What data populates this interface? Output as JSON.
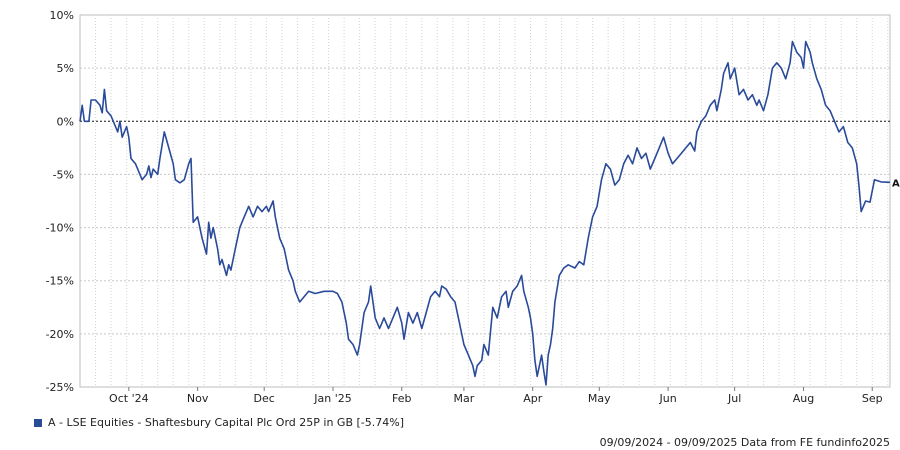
{
  "chart_data": {
    "type": "line",
    "title": "",
    "xlabel": "",
    "ylabel": "",
    "ylim": [
      -25,
      10
    ],
    "y_ticks": [
      10,
      5,
      0,
      -5,
      -10,
      -15,
      -20,
      -25
    ],
    "y_tick_labels": [
      "10%",
      "5%",
      "0%",
      "-5%",
      "-10%",
      "-15%",
      "-20%",
      "-25%"
    ],
    "x_range": [
      "2024-09-09",
      "2025-09-09"
    ],
    "x_ticks": [
      {
        "date": "2024-10-01",
        "label": "Oct '24"
      },
      {
        "date": "2024-11-01",
        "label": "Nov"
      },
      {
        "date": "2024-12-01",
        "label": "Dec"
      },
      {
        "date": "2025-01-01",
        "label": "Jan '25"
      },
      {
        "date": "2025-02-01",
        "label": "Feb"
      },
      {
        "date": "2025-03-01",
        "label": "Mar"
      },
      {
        "date": "2025-04-01",
        "label": "Apr"
      },
      {
        "date": "2025-05-01",
        "label": "May"
      },
      {
        "date": "2025-06-01",
        "label": "Jun"
      },
      {
        "date": "2025-07-01",
        "label": "Jul"
      },
      {
        "date": "2025-08-01",
        "label": "Aug"
      },
      {
        "date": "2025-09-01",
        "label": "Sep"
      }
    ],
    "grid": true,
    "reference_line": 0,
    "legend_position": "bottom-left",
    "series": [
      {
        "name": "A - LSE Equities - Shaftesbury Capital Plc Ord 25P in GB [-5.74%]",
        "end_label": "A",
        "color": "#2a4a9a",
        "points": [
          [
            "2024-09-09",
            0
          ],
          [
            "2024-09-10",
            1.5
          ],
          [
            "2024-09-11",
            0
          ],
          [
            "2024-09-13",
            0
          ],
          [
            "2024-09-14",
            2
          ],
          [
            "2024-09-16",
            2
          ],
          [
            "2024-09-18",
            1.5
          ],
          [
            "2024-09-19",
            0.8
          ],
          [
            "2024-09-20",
            3
          ],
          [
            "2024-09-21",
            1
          ],
          [
            "2024-09-23",
            0.5
          ],
          [
            "2024-09-24",
            0
          ],
          [
            "2024-09-26",
            -1
          ],
          [
            "2024-09-27",
            0
          ],
          [
            "2024-09-28",
            -1.5
          ],
          [
            "2024-09-30",
            -0.5
          ],
          [
            "2024-10-01",
            -1.5
          ],
          [
            "2024-10-02",
            -3.5
          ],
          [
            "2024-10-04",
            -4
          ],
          [
            "2024-10-05",
            -4.5
          ],
          [
            "2024-10-07",
            -5.5
          ],
          [
            "2024-10-09",
            -5
          ],
          [
            "2024-10-10",
            -4.2
          ],
          [
            "2024-10-11",
            -5.3
          ],
          [
            "2024-10-12",
            -4.5
          ],
          [
            "2024-10-14",
            -5
          ],
          [
            "2024-10-15",
            -3.5
          ],
          [
            "2024-10-17",
            -1
          ],
          [
            "2024-10-19",
            -2.5
          ],
          [
            "2024-10-21",
            -4
          ],
          [
            "2024-10-22",
            -5.5
          ],
          [
            "2024-10-24",
            -5.8
          ],
          [
            "2024-10-26",
            -5.5
          ],
          [
            "2024-10-28",
            -4
          ],
          [
            "2024-10-29",
            -3.5
          ],
          [
            "2024-10-30",
            -9.5
          ],
          [
            "2024-11-01",
            -9
          ],
          [
            "2024-11-03",
            -11
          ],
          [
            "2024-11-05",
            -12.5
          ],
          [
            "2024-11-06",
            -9.5
          ],
          [
            "2024-11-07",
            -11
          ],
          [
            "2024-11-08",
            -10
          ],
          [
            "2024-11-10",
            -12
          ],
          [
            "2024-11-11",
            -13.5
          ],
          [
            "2024-11-12",
            -13
          ],
          [
            "2024-11-14",
            -14.5
          ],
          [
            "2024-11-15",
            -13.5
          ],
          [
            "2024-11-16",
            -14
          ],
          [
            "2024-11-18",
            -12
          ],
          [
            "2024-11-20",
            -10
          ],
          [
            "2024-11-22",
            -9
          ],
          [
            "2024-11-24",
            -8
          ],
          [
            "2024-11-26",
            -9
          ],
          [
            "2024-11-28",
            -8
          ],
          [
            "2024-11-30",
            -8.5
          ],
          [
            "2024-12-02",
            -8
          ],
          [
            "2024-12-03",
            -8.5
          ],
          [
            "2024-12-05",
            -7.5
          ],
          [
            "2024-12-06",
            -9
          ],
          [
            "2024-12-08",
            -11
          ],
          [
            "2024-12-10",
            -12
          ],
          [
            "2024-12-12",
            -14
          ],
          [
            "2024-12-14",
            -15
          ],
          [
            "2024-12-15",
            -16
          ],
          [
            "2024-12-17",
            -17
          ],
          [
            "2024-12-19",
            -16.5
          ],
          [
            "2024-12-21",
            -16
          ],
          [
            "2024-12-24",
            -16.2
          ],
          [
            "2024-12-28",
            -16
          ],
          [
            "2025-01-01",
            -16
          ],
          [
            "2025-01-03",
            -16.2
          ],
          [
            "2025-01-05",
            -17
          ],
          [
            "2025-01-07",
            -19
          ],
          [
            "2025-01-08",
            -20.5
          ],
          [
            "2025-01-10",
            -21
          ],
          [
            "2025-01-12",
            -22
          ],
          [
            "2025-01-13",
            -21
          ],
          [
            "2025-01-15",
            -18
          ],
          [
            "2025-01-17",
            -17
          ],
          [
            "2025-01-18",
            -15.5
          ],
          [
            "2025-01-20",
            -18.5
          ],
          [
            "2025-01-22",
            -19.5
          ],
          [
            "2025-01-24",
            -18.5
          ],
          [
            "2025-01-26",
            -19.5
          ],
          [
            "2025-01-28",
            -18.5
          ],
          [
            "2025-01-30",
            -17.5
          ],
          [
            "2025-02-01",
            -19
          ],
          [
            "2025-02-02",
            -20.5
          ],
          [
            "2025-02-04",
            -18
          ],
          [
            "2025-02-06",
            -19
          ],
          [
            "2025-02-08",
            -18
          ],
          [
            "2025-02-10",
            -19.5
          ],
          [
            "2025-02-12",
            -18
          ],
          [
            "2025-02-14",
            -16.5
          ],
          [
            "2025-02-16",
            -16
          ],
          [
            "2025-02-18",
            -16.5
          ],
          [
            "2025-02-19",
            -15.5
          ],
          [
            "2025-02-21",
            -15.8
          ],
          [
            "2025-02-23",
            -16.5
          ],
          [
            "2025-02-25",
            -17
          ],
          [
            "2025-02-27",
            -19
          ],
          [
            "2025-03-01",
            -21
          ],
          [
            "2025-03-03",
            -22
          ],
          [
            "2025-03-05",
            -23
          ],
          [
            "2025-03-06",
            -24
          ],
          [
            "2025-03-07",
            -23
          ],
          [
            "2025-03-09",
            -22.5
          ],
          [
            "2025-03-10",
            -21
          ],
          [
            "2025-03-12",
            -22
          ],
          [
            "2025-03-14",
            -17.5
          ],
          [
            "2025-03-16",
            -18.5
          ],
          [
            "2025-03-18",
            -16.5
          ],
          [
            "2025-03-20",
            -16
          ],
          [
            "2025-03-21",
            -17.5
          ],
          [
            "2025-03-23",
            -16
          ],
          [
            "2025-03-25",
            -15.5
          ],
          [
            "2025-03-27",
            -14.5
          ],
          [
            "2025-03-28",
            -16
          ],
          [
            "2025-03-30",
            -17.5
          ],
          [
            "2025-03-31",
            -18.5
          ],
          [
            "2025-04-01",
            -20
          ],
          [
            "2025-04-02",
            -22.5
          ],
          [
            "2025-04-03",
            -24
          ],
          [
            "2025-04-05",
            -22
          ],
          [
            "2025-04-06",
            -23.5
          ],
          [
            "2025-04-07",
            -24.8
          ],
          [
            "2025-04-08",
            -22
          ],
          [
            "2025-04-09",
            -21
          ],
          [
            "2025-04-10",
            -19.5
          ],
          [
            "2025-04-11",
            -17
          ],
          [
            "2025-04-13",
            -14.5
          ],
          [
            "2025-04-15",
            -13.8
          ],
          [
            "2025-04-17",
            -13.5
          ],
          [
            "2025-04-20",
            -13.8
          ],
          [
            "2025-04-22",
            -13.2
          ],
          [
            "2025-04-24",
            -13.5
          ],
          [
            "2025-04-26",
            -11
          ],
          [
            "2025-04-28",
            -9
          ],
          [
            "2025-04-30",
            -8
          ],
          [
            "2025-05-02",
            -5.5
          ],
          [
            "2025-05-04",
            -4
          ],
          [
            "2025-05-06",
            -4.5
          ],
          [
            "2025-05-08",
            -6
          ],
          [
            "2025-05-10",
            -5.5
          ],
          [
            "2025-05-12",
            -4
          ],
          [
            "2025-05-14",
            -3.2
          ],
          [
            "2025-05-16",
            -4
          ],
          [
            "2025-05-18",
            -2.5
          ],
          [
            "2025-05-20",
            -3.5
          ],
          [
            "2025-05-22",
            -3
          ],
          [
            "2025-05-24",
            -4.5
          ],
          [
            "2025-05-26",
            -3.5
          ],
          [
            "2025-05-28",
            -2.5
          ],
          [
            "2025-05-30",
            -1.5
          ],
          [
            "2025-06-01",
            -3
          ],
          [
            "2025-06-03",
            -4
          ],
          [
            "2025-06-05",
            -3.5
          ],
          [
            "2025-06-07",
            -3
          ],
          [
            "2025-06-09",
            -2.5
          ],
          [
            "2025-06-11",
            -2
          ],
          [
            "2025-06-13",
            -2.8
          ],
          [
            "2025-06-14",
            -1
          ],
          [
            "2025-06-16",
            0
          ],
          [
            "2025-06-18",
            0.5
          ],
          [
            "2025-06-20",
            1.5
          ],
          [
            "2025-06-22",
            2
          ],
          [
            "2025-06-23",
            1
          ],
          [
            "2025-06-25",
            3
          ],
          [
            "2025-06-26",
            4.5
          ],
          [
            "2025-06-28",
            5.5
          ],
          [
            "2025-06-29",
            4
          ],
          [
            "2025-07-01",
            5
          ],
          [
            "2025-07-03",
            2.5
          ],
          [
            "2025-07-05",
            3
          ],
          [
            "2025-07-07",
            2
          ],
          [
            "2025-07-09",
            2.5
          ],
          [
            "2025-07-11",
            1.5
          ],
          [
            "2025-07-12",
            2
          ],
          [
            "2025-07-14",
            1
          ],
          [
            "2025-07-16",
            2.5
          ],
          [
            "2025-07-18",
            5
          ],
          [
            "2025-07-20",
            5.5
          ],
          [
            "2025-07-22",
            5
          ],
          [
            "2025-07-24",
            4
          ],
          [
            "2025-07-26",
            5.5
          ],
          [
            "2025-07-27",
            7.5
          ],
          [
            "2025-07-29",
            6.5
          ],
          [
            "2025-07-31",
            6
          ],
          [
            "2025-08-01",
            5
          ],
          [
            "2025-08-02",
            7.5
          ],
          [
            "2025-08-04",
            6.5
          ],
          [
            "2025-08-05",
            5.5
          ],
          [
            "2025-08-07",
            4
          ],
          [
            "2025-08-09",
            3
          ],
          [
            "2025-08-11",
            1.5
          ],
          [
            "2025-08-13",
            1
          ],
          [
            "2025-08-15",
            0
          ],
          [
            "2025-08-17",
            -1
          ],
          [
            "2025-08-19",
            -0.5
          ],
          [
            "2025-08-21",
            -2
          ],
          [
            "2025-08-23",
            -2.5
          ],
          [
            "2025-08-25",
            -4
          ],
          [
            "2025-08-26",
            -6
          ],
          [
            "2025-08-27",
            -8.5
          ],
          [
            "2025-08-29",
            -7.5
          ],
          [
            "2025-08-31",
            -7.6
          ],
          [
            "2025-09-02",
            -5.5
          ],
          [
            "2025-09-05",
            -5.7
          ],
          [
            "2025-09-09",
            -5.74
          ]
        ]
      }
    ]
  },
  "legend": {
    "label": "A - LSE Equities - Shaftesbury Capital Plc Ord 25P in GB [-5.74%]",
    "color": "#2a4a9a"
  },
  "footer": {
    "text": "09/09/2024 - 09/09/2025 Data from FE fundinfo2025"
  }
}
